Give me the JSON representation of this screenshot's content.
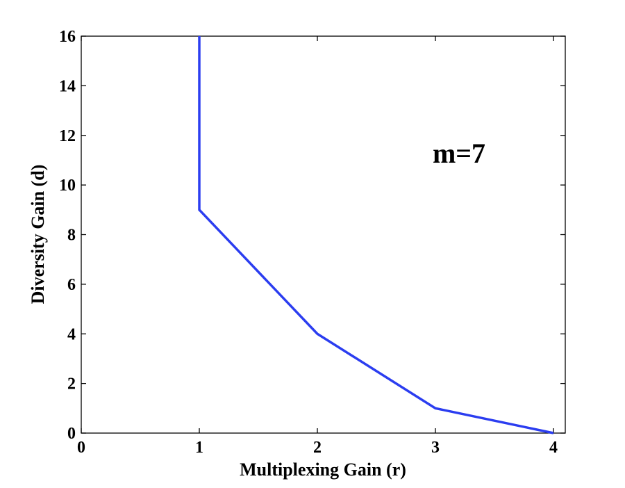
{
  "chart_data": {
    "type": "line",
    "title": "",
    "xlabel": "Multiplexing Gain (r)",
    "ylabel": "Diversity Gain (d)",
    "xlim": [
      0,
      4.1
    ],
    "ylim": [
      0,
      16
    ],
    "x_ticks": [
      0,
      1,
      2,
      3,
      4
    ],
    "y_ticks": [
      0,
      2,
      4,
      6,
      8,
      10,
      12,
      14,
      16
    ],
    "grid": false,
    "legend": "none",
    "annotations": [
      {
        "text": "m=7",
        "x": 3.2,
        "y": 10.9
      }
    ],
    "series": [
      {
        "color": "#2b3df0",
        "x": [
          1,
          1,
          2,
          3,
          4
        ],
        "y": [
          16,
          9,
          4,
          1,
          0
        ]
      }
    ]
  }
}
